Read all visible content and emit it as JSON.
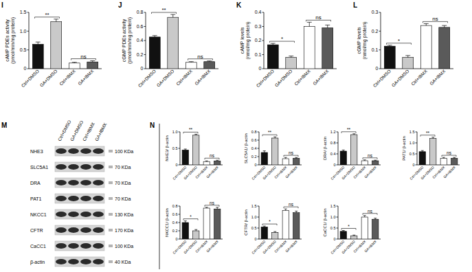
{
  "chart_data": [
    {
      "type": "bar",
      "title": "I",
      "ylabel": [
        "cAMP PDEs activity",
        "(pmol/min/mg protein)"
      ],
      "categories": [
        "Ctrl+DMSO",
        "GA+DMSO",
        "Ctrl+IBMX",
        "GA+IBMX"
      ],
      "values": [
        0.65,
        1.25,
        0.15,
        0.18
      ],
      "errors": [
        0.06,
        0.07,
        0.02,
        0.03
      ],
      "colors": [
        "#111111",
        "#c9c9c9",
        "#ffffff",
        "#5a5a5a"
      ],
      "ylim": [
        0,
        1.5
      ],
      "yticks": [
        0,
        0.5,
        {
          "value": 1,
          "label": "1.0"
        },
        1.5
      ],
      "annotations": [
        {
          "between": [
            0,
            1
          ],
          "label": "**"
        },
        {
          "between": [
            2,
            3
          ],
          "label": "ns"
        }
      ]
    },
    {
      "type": "bar",
      "title": "J",
      "ylabel": [
        "cGMP PDEs activity",
        "(pmol/min/mg protein)"
      ],
      "categories": [
        "Ctrl+DMSO",
        "GA+DMSO",
        "Ctrl+IBMX",
        "GA+IBMX"
      ],
      "values": [
        0.45,
        0.73,
        0.09,
        0.1
      ],
      "errors": [
        0.02,
        0.04,
        0.01,
        0.01
      ],
      "colors": [
        "#111111",
        "#c9c9c9",
        "#ffffff",
        "#5a5a5a"
      ],
      "ylim": [
        0,
        0.8
      ],
      "yticks": [
        0,
        0.2,
        0.4,
        0.6,
        0.8
      ],
      "annotations": [
        {
          "between": [
            0,
            1
          ],
          "label": "**"
        },
        {
          "between": [
            2,
            3
          ],
          "label": "ns"
        }
      ]
    },
    {
      "type": "bar",
      "title": "K",
      "ylabel": [
        "cAMP levels",
        "(nmol/mg protein)"
      ],
      "categories": [
        "Ctrl+DMSO",
        "GA+DMSO",
        "Ctrl+IBMX",
        "GA+IBMX"
      ],
      "values": [
        0.17,
        0.08,
        0.3,
        0.29
      ],
      "errors": [
        0.01,
        0.01,
        0.03,
        0.02
      ],
      "colors": [
        "#111111",
        "#c9c9c9",
        "#ffffff",
        "#5a5a5a"
      ],
      "ylim": [
        0,
        0.4
      ],
      "yticks": [
        0,
        0.1,
        0.2,
        0.3,
        0.4
      ],
      "annotations": [
        {
          "between": [
            0,
            1
          ],
          "label": "*"
        },
        {
          "between": [
            2,
            3
          ],
          "label": "ns"
        }
      ]
    },
    {
      "type": "bar",
      "title": "L",
      "ylabel": [
        "cGMP levels",
        "(nmol/mg protein)"
      ],
      "categories": [
        "Ctrl+DMSO",
        "GA+DMSO",
        "Ctrl+IBMX",
        "GA+IBMX"
      ],
      "values": [
        0.12,
        0.06,
        0.23,
        0.22
      ],
      "errors": [
        0.005,
        0.01,
        0.01,
        0.01
      ],
      "colors": [
        "#111111",
        "#c9c9c9",
        "#ffffff",
        "#5a5a5a"
      ],
      "ylim": [
        0,
        0.3
      ],
      "yticks": [
        0,
        0.1,
        0.2,
        0.3
      ],
      "annotations": [
        {
          "between": [
            0,
            1
          ],
          "label": "*"
        },
        {
          "between": [
            2,
            3
          ],
          "label": "ns"
        }
      ]
    },
    {
      "type": "bar",
      "ylabel": [
        "NHE3/ β-actin"
      ],
      "categories": [
        "Ctrl+DMSO",
        "GA+DMSO",
        "Ctrl+IBMX",
        "GA+IBMX"
      ],
      "values": [
        0.45,
        0.9,
        0.1,
        0.12
      ],
      "errors": [
        0.03,
        0.03,
        0.02,
        0.02
      ],
      "colors": [
        "#111111",
        "#c9c9c9",
        "#ffffff",
        "#5a5a5a"
      ],
      "ylim": [
        0,
        1
      ],
      "yticks": [
        0,
        0.5,
        {
          "value": 1,
          "label": "1.0"
        }
      ],
      "annotations": [
        {
          "between": [
            0,
            1
          ],
          "label": "**"
        },
        {
          "between": [
            2,
            3
          ],
          "label": "ns"
        }
      ]
    },
    {
      "type": "bar",
      "ylabel": [
        "SLC5A1/ β-actin"
      ],
      "categories": [
        "Ctrl+DMSO",
        "GA+DMSO",
        "Ctrl+IBMX",
        "GA+IBMX"
      ],
      "values": [
        0.3,
        0.65,
        0.15,
        0.16
      ],
      "errors": [
        0.04,
        0.03,
        0.03,
        0.02
      ],
      "colors": [
        "#111111",
        "#c9c9c9",
        "#ffffff",
        "#5a5a5a"
      ],
      "ylim": [
        0,
        0.8
      ],
      "yticks": [
        0,
        0.2,
        0.4,
        0.6,
        0.8
      ],
      "annotations": [
        {
          "between": [
            0,
            1
          ],
          "label": "**"
        },
        {
          "between": [
            2,
            3
          ],
          "label": "ns"
        }
      ]
    },
    {
      "type": "bar",
      "ylabel": [
        "DRA/ β-actin"
      ],
      "categories": [
        "Ctrl+DMSO",
        "GA+DMSO",
        "Ctrl+IBMX",
        "GA+IBMX"
      ],
      "values": [
        0.5,
        1.1,
        0.15,
        0.15
      ],
      "errors": [
        0.04,
        0.03,
        0.03,
        0.02
      ],
      "colors": [
        "#111111",
        "#c9c9c9",
        "#ffffff",
        "#5a5a5a"
      ],
      "ylim": [
        0,
        1.2
      ],
      "yticks": [
        0,
        0.4,
        0.8,
        1.2
      ],
      "annotations": [
        {
          "between": [
            0,
            1
          ],
          "label": "**"
        },
        {
          "between": [
            2,
            3
          ],
          "label": "ns"
        }
      ]
    },
    {
      "type": "bar",
      "ylabel": [
        "PAT1/ β-actin"
      ],
      "categories": [
        "Ctrl+DMSO",
        "GA+DMSO",
        "Ctrl+IBMX",
        "GA+IBMX"
      ],
      "values": [
        0.6,
        1.2,
        0.3,
        0.3
      ],
      "errors": [
        0.05,
        0.06,
        0.04,
        0.04
      ],
      "colors": [
        "#111111",
        "#c9c9c9",
        "#ffffff",
        "#5a5a5a"
      ],
      "ylim": [
        0,
        1.5
      ],
      "yticks": [
        0,
        0.5,
        {
          "value": 1,
          "label": "1.0"
        },
        1.5
      ],
      "annotations": [
        {
          "between": [
            0,
            1
          ],
          "label": "**"
        },
        {
          "between": [
            2,
            3
          ],
          "label": "ns"
        }
      ]
    },
    {
      "type": "bar",
      "ylabel": [
        "NKCC1/ β-actin"
      ],
      "categories": [
        "Ctrl+DMSO",
        "GA+DMSO",
        "Ctrl+IBMX",
        "GA+IBMX"
      ],
      "values": [
        0.4,
        0.2,
        0.75,
        0.73
      ],
      "errors": [
        0.04,
        0.03,
        0.02,
        0.04
      ],
      "colors": [
        "#111111",
        "#c9c9c9",
        "#ffffff",
        "#5a5a5a"
      ],
      "ylim": [
        0,
        0.8
      ],
      "yticks": [
        0,
        0.2,
        0.4,
        0.6,
        0.8
      ],
      "annotations": [
        {
          "between": [
            0,
            1
          ],
          "label": "*"
        },
        {
          "between": [
            2,
            3
          ],
          "label": "ns"
        }
      ]
    },
    {
      "type": "bar",
      "ylabel": [
        "CFTR/ β-actin"
      ],
      "categories": [
        "Ctrl+DMSO",
        "GA+DMSO",
        "Ctrl+IBMX",
        "GA+IBMX"
      ],
      "values": [
        0.55,
        0.3,
        1.3,
        1.2
      ],
      "errors": [
        0.04,
        0.04,
        0.07,
        0.07
      ],
      "colors": [
        "#111111",
        "#c9c9c9",
        "#ffffff",
        "#5a5a5a"
      ],
      "ylim": [
        0,
        1.5
      ],
      "yticks": [
        0,
        0.5,
        {
          "value": 1,
          "label": "1.0"
        },
        1.5
      ],
      "annotations": [
        {
          "between": [
            0,
            1
          ],
          "label": "*"
        },
        {
          "between": [
            2,
            3
          ],
          "label": "ns"
        }
      ]
    },
    {
      "type": "bar",
      "ylabel": [
        "CaCC1/ β-actin"
      ],
      "categories": [
        "Ctrl+DMSO",
        "GA+DMSO",
        "Ctrl+IBMX",
        "GA+IBMX"
      ],
      "values": [
        0.35,
        0.15,
        1,
        0.9
      ],
      "errors": [
        0.04,
        0.03,
        0.07,
        0.05
      ],
      "colors": [
        "#111111",
        "#c9c9c9",
        "#ffffff",
        "#5a5a5a"
      ],
      "ylim": [
        0,
        1.5
      ],
      "yticks": [
        0,
        0.5,
        {
          "value": 1,
          "label": "1.0"
        },
        1.5
      ],
      "annotations": [
        {
          "between": [
            0,
            1
          ],
          "label": "*"
        },
        {
          "between": [
            2,
            3
          ],
          "label": "ns"
        }
      ]
    }
  ],
  "blot": {
    "title": "M",
    "lanes": [
      "Ctrl+DMSO",
      "GA+DMSO",
      "Ctrl+IBMX",
      "GA+IBMX"
    ],
    "rows": [
      {
        "name": "NHE3",
        "size": "100 KDa"
      },
      {
        "name": "SLC5A1",
        "size": "70 KDa"
      },
      {
        "name": "DRA",
        "size": "70 KDa"
      },
      {
        "name": "PAT1",
        "size": "70 KDa"
      },
      {
        "name": "NKCC1",
        "size": "130 KDa"
      },
      {
        "name": "CFTR",
        "size": "170 KDa"
      },
      {
        "name": "CaCC1",
        "size": "100 KDa"
      },
      {
        "name": "β-actin",
        "size": "40 KDa"
      }
    ]
  },
  "panel_n": {
    "title": "N"
  }
}
